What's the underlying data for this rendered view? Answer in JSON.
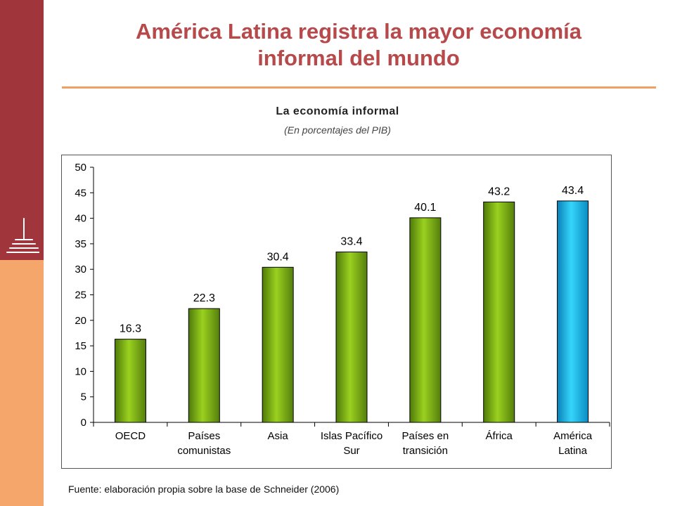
{
  "slide": {
    "title_line1": "América Latina registra la mayor economía",
    "title_line2": "informal del mundo",
    "source": "Fuente: elaboración propia sobre la base de Schneider (2006)"
  },
  "colors": {
    "sidebar_top": "#a0363c",
    "sidebar_bottom": "#f5a66a",
    "title": "#b8494b",
    "bar_green": "#8fc31f",
    "bar_highlight": "#1ec8f0"
  },
  "chart_data": {
    "type": "bar",
    "title": "La economía informal",
    "subtitle": "(En porcentajes del PIB)",
    "categories": [
      [
        "OECD"
      ],
      [
        "Países",
        "comunistas"
      ],
      [
        "Asia"
      ],
      [
        "Islas Pacífico",
        "Sur"
      ],
      [
        "Países en",
        "transición"
      ],
      [
        "África"
      ],
      [
        "América",
        "Latina"
      ]
    ],
    "values": [
      16.3,
      22.3,
      30.4,
      33.4,
      40.1,
      43.2,
      43.4
    ],
    "value_labels": [
      "16.3",
      "22.3",
      "30.4",
      "33.4",
      "40.1",
      "43.2",
      "43.4"
    ],
    "highlight_index": 6,
    "ylim": [
      0,
      50
    ],
    "yticks": [
      0,
      5,
      10,
      15,
      20,
      25,
      30,
      35,
      40,
      45,
      50
    ],
    "grid": false,
    "legend": "none"
  }
}
